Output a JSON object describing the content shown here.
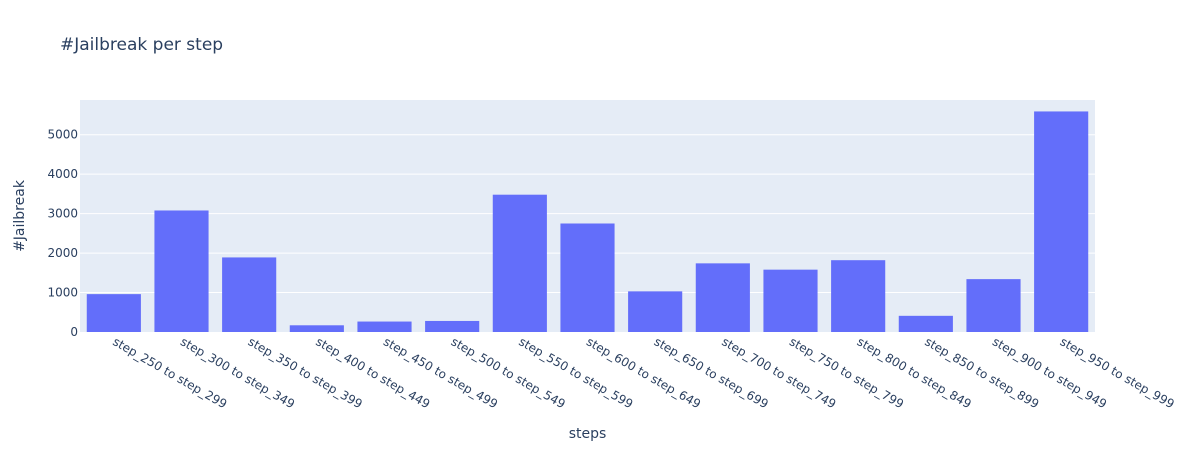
{
  "chart_data": {
    "type": "bar",
    "title": "#Jailbreak per step",
    "xlabel": "steps",
    "ylabel": "#Jailbreak",
    "categories": [
      "step_250 to step_299",
      "step_300 to step_349",
      "step_350 to step_399",
      "step_400 to step_449",
      "step_450 to step_499",
      "step_500 to step_549",
      "step_550 to step_599",
      "step_600 to step_649",
      "step_650 to step_699",
      "step_700 to step_749",
      "step_750 to step_799",
      "step_800 to step_849",
      "step_850 to step_899",
      "step_900 to step_949",
      "step_950 to step_999"
    ],
    "values": [
      960,
      3080,
      1890,
      170,
      265,
      280,
      3480,
      2750,
      1030,
      1740,
      1580,
      1820,
      410,
      1340,
      5590
    ],
    "ylim": [
      0,
      5880
    ],
    "yticks": [
      0,
      1000,
      2000,
      3000,
      4000,
      5000
    ],
    "grid": true,
    "colors": {
      "bar": "#636efa",
      "plot_bg": "#e5ecf6",
      "grid": "#ffffff",
      "text": "#2a3f5f"
    }
  }
}
